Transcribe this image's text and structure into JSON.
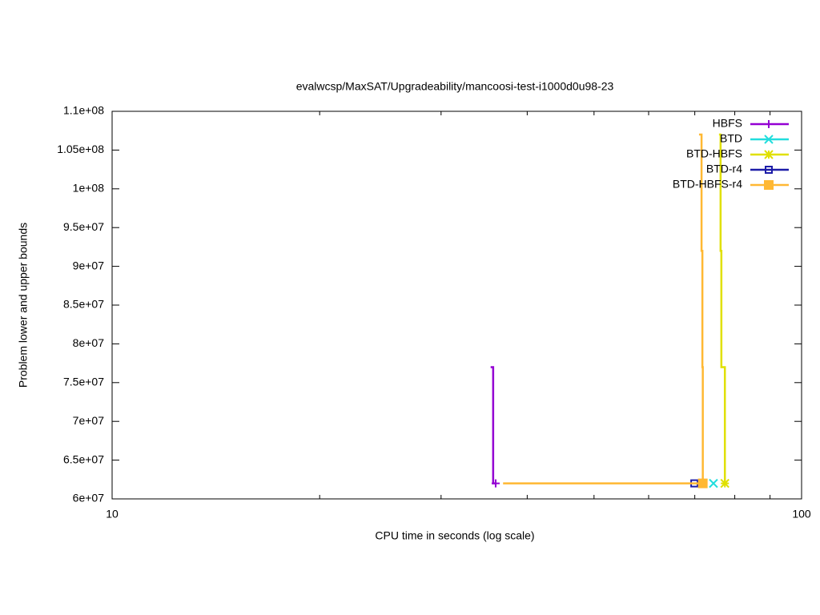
{
  "chart_data": {
    "type": "line",
    "title": "evalwcsp/MaxSAT/Upgradeability/mancoosi-test-i1000d0u98-23",
    "xlabel": "CPU time in seconds (log scale)",
    "ylabel": "Problem lower and upper bounds",
    "xscale": "log",
    "xlim": [
      10,
      100
    ],
    "xticks": [
      10,
      100
    ],
    "xminorticks": [
      20,
      30,
      40,
      50,
      60,
      70,
      80,
      90
    ],
    "ylim": [
      60000000,
      110000000
    ],
    "yticks": [
      {
        "value": 60000000,
        "label": "6e+07"
      },
      {
        "value": 65000000,
        "label": "6.5e+07"
      },
      {
        "value": 70000000,
        "label": "7e+07"
      },
      {
        "value": 75000000,
        "label": "7.5e+07"
      },
      {
        "value": 80000000,
        "label": "8e+07"
      },
      {
        "value": 85000000,
        "label": "8.5e+07"
      },
      {
        "value": 90000000,
        "label": "9e+07"
      },
      {
        "value": 95000000,
        "label": "9.5e+07"
      },
      {
        "value": 100000000,
        "label": "1e+08"
      },
      {
        "value": 105000000,
        "label": "1.05e+08"
      },
      {
        "value": 110000000,
        "label": "1.1e+08"
      }
    ],
    "legend": "top-right",
    "series": [
      {
        "name": "HBFS",
        "color": "#9400d3",
        "marker": "plus",
        "x": [
          35.4,
          35.7,
          35.7,
          36.0
        ],
        "values": [
          77000000,
          77000000,
          62000000,
          62000000
        ]
      },
      {
        "name": "BTD",
        "color": "#22dddd",
        "marker": "cross",
        "x": [
          74.5
        ],
        "values": [
          62000000
        ]
      },
      {
        "name": "BTD-HBFS",
        "color": "#e0e000",
        "marker": "star",
        "x": [
          75.9,
          76.3,
          76.3,
          76.5,
          76.5,
          77.4,
          77.4
        ],
        "values": [
          107000000,
          107000000,
          92000000,
          92000000,
          77000000,
          77000000,
          62000000
        ]
      },
      {
        "name": "BTD-r4",
        "color": "#1c1ca8",
        "marker": "square",
        "x": [
          69.9
        ],
        "values": [
          62000000
        ]
      },
      {
        "name": "BTD-HBFS-r4",
        "color": "#ffb833",
        "marker": "filled-square",
        "x": [
          36.9,
          71.9,
          null,
          71.0,
          71.6,
          71.6,
          71.8,
          71.8,
          71.9,
          71.9
        ],
        "values": [
          62000000,
          62000000,
          null,
          107000000,
          107000000,
          92000000,
          92000000,
          77000000,
          77000000,
          62000000
        ]
      }
    ]
  }
}
